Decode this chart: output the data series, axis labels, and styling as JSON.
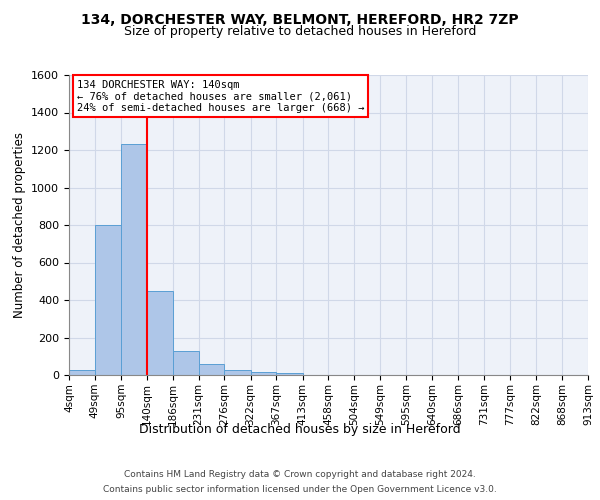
{
  "title1": "134, DORCHESTER WAY, BELMONT, HEREFORD, HR2 7ZP",
  "title2": "Size of property relative to detached houses in Hereford",
  "xlabel": "Distribution of detached houses by size in Hereford",
  "ylabel": "Number of detached properties",
  "bin_edges": [
    4,
    49,
    95,
    140,
    186,
    231,
    276,
    322,
    367,
    413,
    458,
    504,
    549,
    595,
    640,
    686,
    731,
    777,
    822,
    868,
    913
  ],
  "bar_heights": [
    25,
    800,
    1230,
    450,
    130,
    60,
    25,
    15,
    10,
    0,
    0,
    0,
    0,
    0,
    0,
    0,
    0,
    0,
    0,
    0
  ],
  "bar_color": "#aec6e8",
  "bar_edgecolor": "#5a9fd4",
  "vline_x": 140,
  "vline_color": "red",
  "annotation_lines": [
    "134 DORCHESTER WAY: 140sqm",
    "← 76% of detached houses are smaller (2,061)",
    "24% of semi-detached houses are larger (668) →"
  ],
  "annotation_box_edgecolor": "red",
  "annotation_box_facecolor": "white",
  "ylim": [
    0,
    1600
  ],
  "yticks": [
    0,
    200,
    400,
    600,
    800,
    1000,
    1200,
    1400,
    1600
  ],
  "grid_color": "#d0d8e8",
  "background_color": "#eef2f9",
  "footer_line1": "Contains HM Land Registry data © Crown copyright and database right 2024.",
  "footer_line2": "Contains public sector information licensed under the Open Government Licence v3.0."
}
